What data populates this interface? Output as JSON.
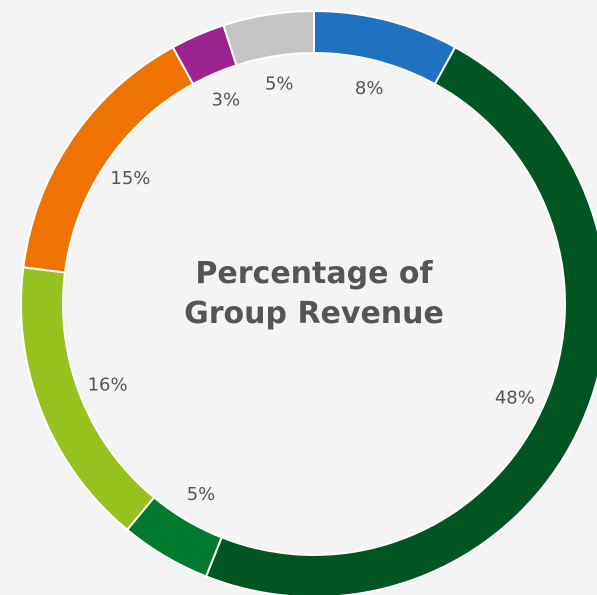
{
  "chart_data": {
    "type": "pie",
    "title": "Percentage of Group Revenue",
    "categories": [
      null,
      null,
      null,
      null,
      null,
      null,
      null
    ],
    "values": [
      8,
      48,
      5,
      16,
      15,
      3,
      5
    ],
    "value_labels": [
      "8%",
      "48%",
      "5%",
      "16%",
      "15%",
      "3%",
      "5%"
    ],
    "colors": [
      "#1f72bf",
      "#005522",
      "#007a2e",
      "#97c11f",
      "#ef7300",
      "#9a2390",
      "#c4c4c4"
    ],
    "donut": true
  }
}
